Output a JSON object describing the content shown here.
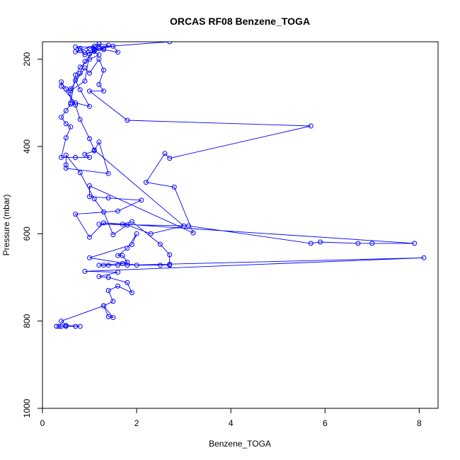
{
  "chart_data": {
    "type": "line",
    "title": "ORCAS RF08 Benzene_TOGA",
    "xlabel": "Benzene_TOGA",
    "ylabel": "Pressure (mbar)",
    "xlim": [
      0,
      8.4
    ],
    "ylim": [
      1000,
      160
    ],
    "y_reversed": true,
    "xticks": [
      0,
      2,
      4,
      6,
      8
    ],
    "yticks": [
      200,
      400,
      600,
      800,
      1000
    ],
    "grid": false,
    "series": [
      {
        "color": "#0000ff",
        "marker": "open-circle",
        "points": [
          [
            0.3,
            812
          ],
          [
            0.35,
            812
          ],
          [
            0.4,
            812
          ],
          [
            0.5,
            812
          ],
          [
            0.7,
            812
          ],
          [
            0.8,
            812
          ],
          [
            0.5,
            810
          ],
          [
            0.4,
            800
          ],
          [
            1.3,
            765
          ],
          [
            1.4,
            790
          ],
          [
            1.5,
            792
          ],
          [
            1.3,
            765
          ],
          [
            1.5,
            755
          ],
          [
            1.4,
            730
          ],
          [
            1.6,
            720
          ],
          [
            1.9,
            735
          ],
          [
            1.8,
            712
          ],
          [
            1.4,
            700
          ],
          [
            1.2,
            698
          ],
          [
            1.6,
            688
          ],
          [
            0.9,
            686
          ],
          [
            8.1,
            655
          ],
          [
            1.8,
            672
          ],
          [
            1.6,
            672
          ],
          [
            1.4,
            672
          ],
          [
            1.3,
            672
          ],
          [
            1.2,
            672
          ],
          [
            1.7,
            668
          ],
          [
            1.8,
            665
          ],
          [
            1.7,
            650
          ],
          [
            1.6,
            650
          ],
          [
            1.8,
            633
          ],
          [
            2.0,
            600
          ],
          [
            1.9,
            625
          ],
          [
            1.0,
            655
          ],
          [
            2.0,
            672
          ],
          [
            2.5,
            672
          ],
          [
            2.7,
            672
          ],
          [
            2.7,
            670
          ],
          [
            2.7,
            648
          ],
          [
            2.5,
            624
          ],
          [
            1.9,
            572
          ],
          [
            1.7,
            578
          ],
          [
            1.2,
            578
          ],
          [
            3.1,
            582
          ],
          [
            5.7,
            622
          ],
          [
            5.9,
            619
          ],
          [
            6.7,
            622
          ],
          [
            7.0,
            622
          ],
          [
            7.9,
            622
          ],
          [
            1.3,
            575
          ],
          [
            1.0,
            608
          ],
          [
            0.7,
            555
          ],
          [
            1.6,
            548
          ],
          [
            2.1,
            523
          ],
          [
            1.4,
            518
          ],
          [
            1.0,
            515
          ],
          [
            1.0,
            490
          ],
          [
            3.2,
            598
          ],
          [
            2.8,
            493
          ],
          [
            2.2,
            482
          ],
          [
            2.6,
            416
          ],
          [
            2.7,
            427
          ],
          [
            5.7,
            353
          ],
          [
            1.8,
            340
          ],
          [
            1.0,
            273
          ],
          [
            1.3,
            273
          ],
          [
            1.2,
            258
          ],
          [
            1.3,
            225
          ],
          [
            1.2,
            200
          ],
          [
            1.0,
            232
          ],
          [
            0.9,
            220
          ],
          [
            0.6,
            268
          ],
          [
            0.6,
            303
          ],
          [
            0.5,
            318
          ],
          [
            0.4,
            333
          ],
          [
            0.5,
            348
          ],
          [
            0.6,
            355
          ],
          [
            0.5,
            380
          ],
          [
            0.4,
            425
          ],
          [
            0.7,
            425
          ],
          [
            1.0,
            425
          ],
          [
            0.9,
            418
          ],
          [
            1.1,
            410
          ],
          [
            1.2,
            390
          ],
          [
            1.4,
            462
          ],
          [
            0.5,
            450
          ],
          [
            0.5,
            442
          ],
          [
            0.5,
            420
          ],
          [
            0.8,
            460
          ],
          [
            1.1,
            520
          ],
          [
            1.3,
            550
          ],
          [
            1.5,
            602
          ],
          [
            1.8,
            580
          ],
          [
            2.3,
            600
          ],
          [
            3.0,
            582
          ],
          [
            1.1,
            408
          ],
          [
            1.0,
            382
          ],
          [
            0.8,
            338
          ],
          [
            0.7,
            305
          ],
          [
            0.5,
            268
          ],
          [
            0.4,
            252
          ],
          [
            0.4,
            262
          ],
          [
            0.7,
            300
          ],
          [
            1.0,
            308
          ],
          [
            0.8,
            270
          ],
          [
            0.7,
            248
          ],
          [
            0.8,
            232
          ],
          [
            0.9,
            205
          ],
          [
            1.1,
            180
          ],
          [
            1.3,
            175
          ],
          [
            1.4,
            168
          ],
          [
            1.2,
            165
          ],
          [
            0.8,
            180
          ],
          [
            0.7,
            183
          ],
          [
            0.9,
            185
          ],
          [
            1.0,
            176
          ],
          [
            1.1,
            170
          ],
          [
            1.1,
            182
          ],
          [
            1.2,
            190
          ],
          [
            1.0,
            200
          ],
          [
            0.8,
            218
          ],
          [
            0.7,
            236
          ],
          [
            0.6,
            300
          ],
          [
            0.6,
            272
          ],
          [
            0.9,
            250
          ],
          [
            1.0,
            188
          ],
          [
            1.1,
            178
          ],
          [
            1.5,
            170
          ],
          [
            1.6,
            184
          ],
          [
            1.3,
            178
          ],
          [
            1.2,
            176
          ],
          [
            0.9,
            190
          ],
          [
            0.8,
            175
          ],
          [
            0.7,
            172
          ],
          [
            1.2,
            172
          ],
          [
            2.7,
            160
          ]
        ]
      }
    ]
  }
}
